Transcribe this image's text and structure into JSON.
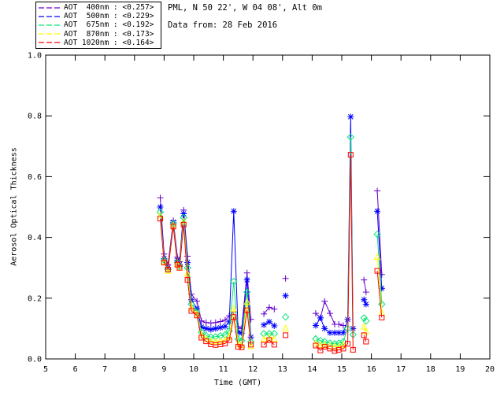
{
  "header": {
    "title_line1": "PML, N 50 22', W 04 08', Alt 0m",
    "title_line2": "Data from: 28 Feb 2016"
  },
  "legend": {
    "entries": [
      {
        "label": "AOT  400nm : <0.257>",
        "color": "#6600cc"
      },
      {
        "label": "AOT  500nm : <0.229>",
        "color": "#0000ff"
      },
      {
        "label": "AOT  675nm : <0.192>",
        "color": "#00e673"
      },
      {
        "label": "AOT  870nm : <0.173>",
        "color": "#ffff00"
      },
      {
        "label": "AOT 1020nm : <0.164>",
        "color": "#ff0000"
      }
    ]
  },
  "chart_data": {
    "type": "line",
    "title": "PML, N 50 22', W 04 08', Alt 0m",
    "subtitle": "Data from: 28 Feb 2016",
    "xlabel": "Time (GMT)",
    "ylabel": "Aerosol Optical Thickness",
    "xlim": [
      5,
      20
    ],
    "ylim": [
      0.0,
      1.0
    ],
    "xticks": [
      5,
      6,
      7,
      8,
      9,
      10,
      11,
      12,
      13,
      14,
      15,
      16,
      17,
      18,
      19,
      20
    ],
    "yticks": [
      "0.0",
      "0.2",
      "0.4",
      "0.6",
      "0.8",
      "1.0"
    ],
    "legend_position": "top-left",
    "grid": false,
    "x": [
      8.87,
      9.0,
      9.13,
      9.31,
      9.45,
      9.52,
      9.66,
      9.79,
      9.92,
      10.11,
      10.26,
      10.42,
      10.58,
      10.74,
      10.9,
      11.06,
      11.2,
      11.35,
      11.5,
      11.62,
      11.8,
      11.93,
      null,
      12.37,
      12.55,
      12.72,
      null,
      13.1,
      null,
      14.12,
      14.28,
      14.42,
      14.6,
      14.76,
      14.9,
      15.05,
      15.2,
      15.3,
      15.38,
      null,
      15.75,
      15.82,
      null,
      16.2,
      16.35
    ],
    "series": [
      {
        "name": "AOT 400nm",
        "mean": "<0.257>",
        "color": "#6600cc",
        "marker": "plus",
        "values": [
          0.53,
          0.345,
          0.31,
          0.455,
          0.335,
          0.32,
          0.49,
          0.338,
          0.213,
          0.19,
          0.125,
          0.12,
          0.118,
          0.12,
          0.123,
          0.128,
          0.142,
          0.155,
          0.106,
          0.1,
          0.283,
          0.13,
          null,
          0.148,
          0.17,
          0.164,
          null,
          0.265,
          null,
          0.15,
          0.135,
          0.19,
          0.15,
          0.114,
          0.114,
          0.11,
          null,
          null,
          null,
          null,
          0.26,
          0.22,
          null,
          0.553,
          0.278
        ]
      },
      {
        "name": "AOT 500nm",
        "mean": "<0.229>",
        "color": "#0000ff",
        "marker": "asterisk",
        "values": [
          0.5,
          0.33,
          0.3,
          0.45,
          0.325,
          0.31,
          0.478,
          0.317,
          0.195,
          0.165,
          0.105,
          0.1,
          0.097,
          0.1,
          0.103,
          0.107,
          0.122,
          0.486,
          0.088,
          0.085,
          0.26,
          0.072,
          null,
          0.112,
          0.122,
          0.109,
          null,
          0.208,
          null,
          0.11,
          0.135,
          0.1,
          0.086,
          0.086,
          0.086,
          0.086,
          0.13,
          0.797,
          0.1,
          null,
          0.195,
          0.18,
          null,
          0.486,
          0.232
        ]
      },
      {
        "name": "AOT 675nm",
        "mean": "<0.192>",
        "color": "#00e673",
        "marker": "diamond",
        "values": [
          0.483,
          0.325,
          0.295,
          0.445,
          0.318,
          0.305,
          0.465,
          0.3,
          0.18,
          0.155,
          0.088,
          0.077,
          0.072,
          0.073,
          0.076,
          0.079,
          0.092,
          0.255,
          0.065,
          0.06,
          0.22,
          0.056,
          null,
          0.083,
          0.083,
          0.083,
          null,
          0.138,
          null,
          0.066,
          0.06,
          0.057,
          0.052,
          0.05,
          0.052,
          0.057,
          0.1,
          0.73,
          0.08,
          null,
          0.135,
          0.125,
          null,
          0.41,
          0.18
        ]
      },
      {
        "name": "AOT 870nm",
        "mean": "<0.173>",
        "color": "#ffff00",
        "marker": "triangle",
        "values": [
          0.472,
          0.32,
          0.29,
          0.44,
          0.312,
          0.3,
          0.452,
          0.28,
          0.168,
          0.148,
          0.078,
          0.065,
          0.058,
          0.057,
          0.058,
          0.062,
          0.072,
          0.165,
          0.048,
          0.045,
          0.187,
          0.042,
          null,
          0.065,
          0.07,
          0.065,
          null,
          0.1,
          null,
          0.05,
          0.045,
          0.045,
          0.042,
          0.04,
          0.04,
          0.045,
          null,
          null,
          null,
          null,
          0.106,
          0.09,
          null,
          0.335,
          0.152
        ]
      },
      {
        "name": "AOT 1020nm",
        "mean": "<0.164>",
        "color": "#ff0000",
        "marker": "square",
        "values": [
          0.462,
          0.317,
          0.294,
          0.436,
          0.31,
          0.3,
          0.442,
          0.26,
          0.158,
          0.143,
          0.07,
          0.058,
          0.048,
          0.046,
          0.048,
          0.051,
          0.062,
          0.138,
          0.04,
          0.038,
          0.16,
          0.047,
          null,
          0.047,
          0.062,
          0.047,
          null,
          0.078,
          null,
          0.044,
          0.028,
          0.04,
          0.034,
          0.026,
          0.03,
          0.034,
          0.05,
          0.672,
          0.03,
          null,
          0.078,
          0.057,
          null,
          0.29,
          0.136
        ]
      }
    ]
  }
}
